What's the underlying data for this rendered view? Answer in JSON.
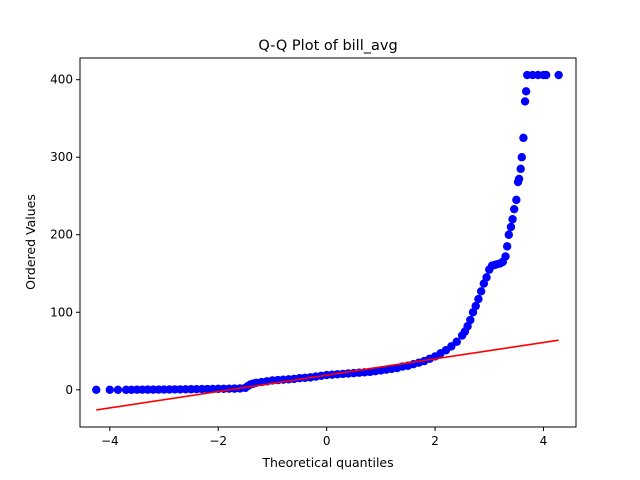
{
  "chart_data": {
    "type": "scatter",
    "title": "Q-Q Plot of bill_avg",
    "xlabel": "Theoretical quantiles",
    "ylabel": "Ordered Values",
    "xlim": [
      -4.55,
      4.6
    ],
    "ylim": [
      -48,
      428
    ],
    "xticks": [
      -4,
      -2,
      0,
      2,
      4
    ],
    "xtick_labels": [
      "−4",
      "−2",
      "0",
      "2",
      "4"
    ],
    "yticks": [
      0,
      100,
      200,
      300,
      400
    ],
    "ytick_labels": [
      "0",
      "100",
      "200",
      "300",
      "400"
    ],
    "grid": false,
    "series": [
      {
        "role": "ordered-values",
        "color": "#0000ff",
        "marker": "circle",
        "points": [
          [
            -4.25,
            0
          ],
          [
            -4.0,
            0
          ],
          [
            -3.85,
            0
          ],
          [
            -3.7,
            0
          ],
          [
            -3.6,
            0
          ],
          [
            -3.5,
            0.1
          ],
          [
            -3.4,
            0.1
          ],
          [
            -3.3,
            0.2
          ],
          [
            -3.2,
            0.2
          ],
          [
            -3.1,
            0.3
          ],
          [
            -3.0,
            0.3
          ],
          [
            -2.9,
            0.4
          ],
          [
            -2.8,
            0.5
          ],
          [
            -2.7,
            0.5
          ],
          [
            -2.6,
            0.6
          ],
          [
            -2.5,
            0.7
          ],
          [
            -2.4,
            0.8
          ],
          [
            -2.3,
            0.9
          ],
          [
            -2.2,
            1.0
          ],
          [
            -2.1,
            1.1
          ],
          [
            -2.0,
            1.2
          ],
          [
            -1.9,
            1.3
          ],
          [
            -1.8,
            1.4
          ],
          [
            -1.7,
            1.5
          ],
          [
            -1.6,
            1.7
          ],
          [
            -1.5,
            2.5
          ],
          [
            -1.45,
            5.0
          ],
          [
            -1.4,
            7.0
          ],
          [
            -1.35,
            8.0
          ],
          [
            -1.3,
            9.0
          ],
          [
            -1.2,
            10.0
          ],
          [
            -1.1,
            11.0
          ],
          [
            -1.0,
            12.0
          ],
          [
            -0.9,
            12.5
          ],
          [
            -0.8,
            13.0
          ],
          [
            -0.7,
            13.5
          ],
          [
            -0.6,
            14.0
          ],
          [
            -0.5,
            15.0
          ],
          [
            -0.4,
            15.5
          ],
          [
            -0.3,
            16.0
          ],
          [
            -0.2,
            17.0
          ],
          [
            -0.1,
            18.0
          ],
          [
            0.0,
            19.0
          ],
          [
            0.1,
            19.5
          ],
          [
            0.2,
            20.0
          ],
          [
            0.3,
            20.5
          ],
          [
            0.4,
            21.0
          ],
          [
            0.5,
            21.5
          ],
          [
            0.6,
            22.0
          ],
          [
            0.7,
            22.5
          ],
          [
            0.8,
            23.0
          ],
          [
            0.9,
            24.0
          ],
          [
            1.0,
            25.0
          ],
          [
            1.1,
            26.0
          ],
          [
            1.2,
            27.0
          ],
          [
            1.3,
            28.0
          ],
          [
            1.4,
            30.0
          ],
          [
            1.5,
            31.0
          ],
          [
            1.6,
            33.0
          ],
          [
            1.7,
            35.0
          ],
          [
            1.8,
            37.0
          ],
          [
            1.9,
            40.0
          ],
          [
            2.0,
            43.0
          ],
          [
            2.1,
            47.0
          ],
          [
            2.2,
            51.0
          ],
          [
            2.3,
            56.0
          ],
          [
            2.4,
            62.0
          ],
          [
            2.5,
            70.0
          ],
          [
            2.55,
            75.0
          ],
          [
            2.6,
            82.0
          ],
          [
            2.65,
            90.0
          ],
          [
            2.7,
            100.0
          ],
          [
            2.75,
            108.0
          ],
          [
            2.8,
            117.0
          ],
          [
            2.85,
            127.0
          ],
          [
            2.9,
            137.0
          ],
          [
            2.95,
            145.0
          ],
          [
            3.0,
            155.0
          ],
          [
            3.05,
            160.0
          ],
          [
            3.1,
            161.0
          ],
          [
            3.15,
            162.0
          ],
          [
            3.2,
            163.0
          ],
          [
            3.25,
            165.0
          ],
          [
            3.3,
            172.0
          ],
          [
            3.33,
            185.0
          ],
          [
            3.36,
            200.0
          ],
          [
            3.4,
            210.0
          ],
          [
            3.43,
            220.0
          ],
          [
            3.46,
            233.0
          ],
          [
            3.5,
            245.0
          ],
          [
            3.53,
            268.0
          ],
          [
            3.55,
            272.0
          ],
          [
            3.58,
            285.0
          ],
          [
            3.6,
            300.0
          ],
          [
            3.63,
            325.0
          ],
          [
            3.66,
            372.0
          ],
          [
            3.68,
            385.0
          ],
          [
            3.7,
            406.0
          ],
          [
            3.8,
            406.0
          ],
          [
            3.9,
            406.0
          ],
          [
            4.0,
            406.0
          ],
          [
            4.05,
            406.0
          ],
          [
            4.28,
            406.0
          ]
        ]
      },
      {
        "role": "fit-line",
        "type": "line",
        "color": "#ff0000",
        "x": [
          -4.25,
          4.28
        ],
        "y": [
          -26,
          64
        ]
      }
    ]
  }
}
